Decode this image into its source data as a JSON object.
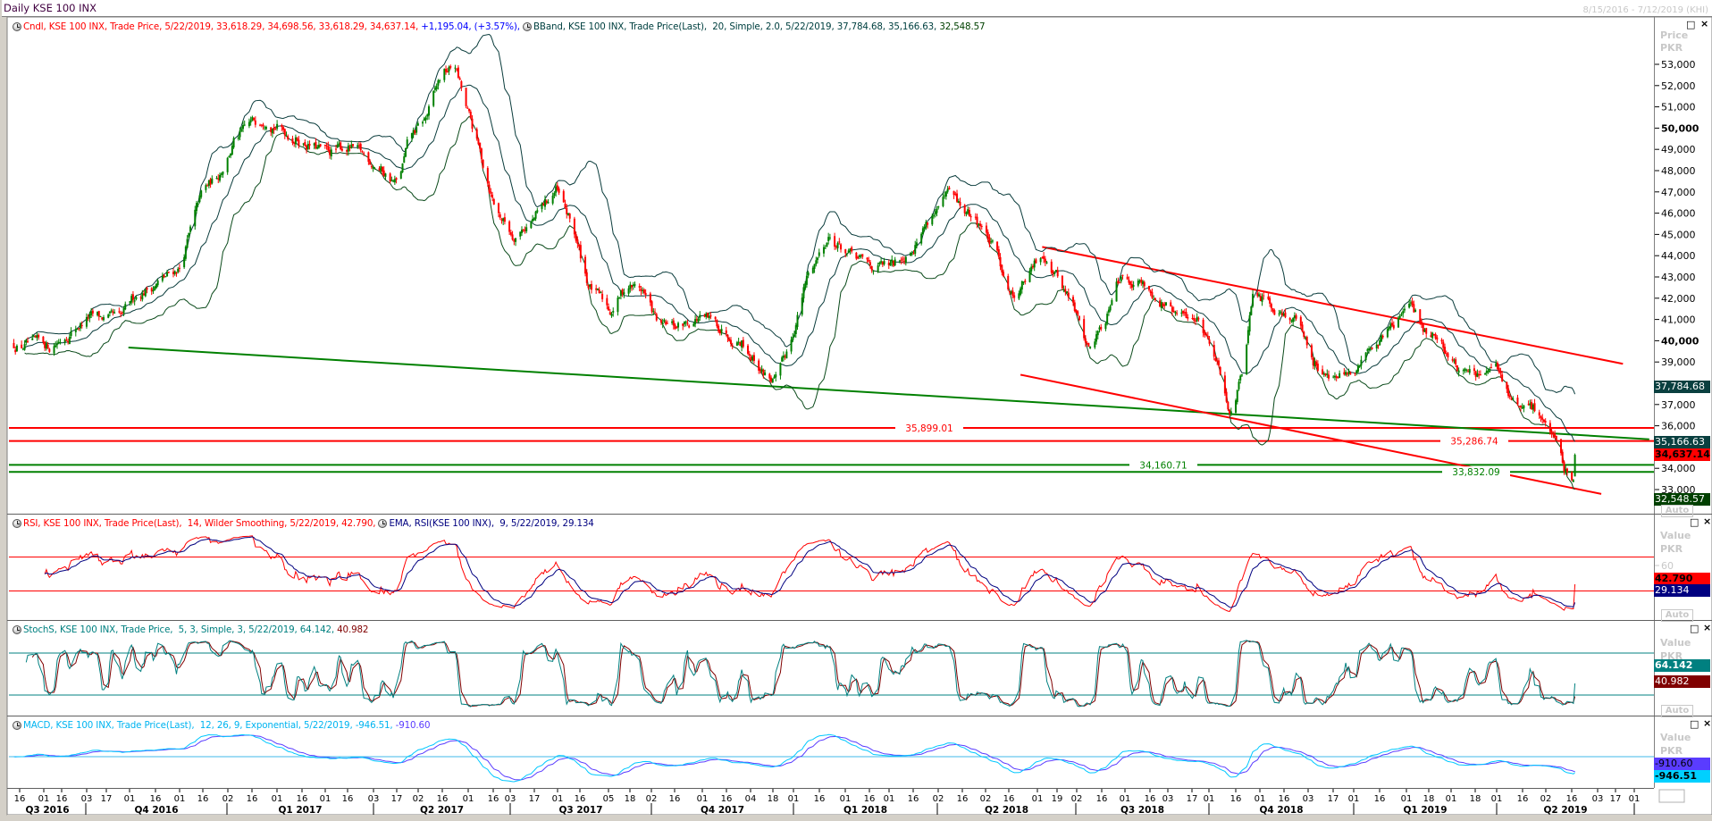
{
  "window": {
    "title": "Daily KSE 100 INX",
    "date_range": "8/15/2016 - 7/12/2019 (KHI)"
  },
  "main_panel": {
    "legend": {
      "cndl": "Cndl, KSE 100 INX, Trade Price, 5/22/2019, 33,618.29, 34,698.56, 33,618.29, 34,637.14, ",
      "change": "+1,195.04, (+3.57%), ",
      "bband": "BBand, KSE 100 INX, Trade Price(Last),  20, Simple, 2.0, 5/22/2019, 37,784.68, 35,166.63, ",
      "bband_last": "32,548.57"
    },
    "axis_title": "Price",
    "axis_unit": "PKR",
    "auto_label": "Auto",
    "value_boxes": {
      "bb_upper": "37,784.68",
      "bb_middle": "35,166.63",
      "last_price": "34,637.14",
      "bb_lower": "32,548.57"
    }
  },
  "rsi_panel": {
    "legend": {
      "rsi": "RSI, KSE 100 INX, Trade Price(Last),  14, Wilder Smoothing, 5/22/2019, 42.790, ",
      "ema": "EMA, RSI(KSE 100 INX),  9, 5/22/2019, 29.134"
    },
    "axis_title": "Value",
    "axis_unit": "PKR",
    "tick": "60",
    "auto_label": "Auto",
    "value_boxes": {
      "rsi": "42.790",
      "ema": "29.134"
    }
  },
  "stoch_panel": {
    "legend": {
      "stoch": "StochS, KSE 100 INX, Trade Price,  5, 3, Simple, 3, 5/22/2019, 64.142, ",
      "d": "40.982"
    },
    "axis_title": "Value",
    "axis_unit": "PKR",
    "auto_label": "Auto",
    "value_boxes": {
      "k": "64.142",
      "d": "40.982"
    }
  },
  "macd_panel": {
    "legend": {
      "macd": "MACD, KSE 100 INX, Trade Price(Last),  12, 26, 9, Exponential, 5/22/2019, -946.51, ",
      "signal": "-910.60"
    },
    "axis_title": "Value",
    "axis_unit": "PKR",
    "value_boxes": {
      "signal": "-910.60",
      "macd": "-946.51"
    }
  },
  "panel_buttons": {
    "maximize": "□",
    "close": "×"
  },
  "colors": {
    "up": "#008000",
    "down": "#ff0000",
    "bband": "#0a3c3c",
    "rsi": "#ff0000",
    "rsi_ema": "#000080",
    "stoch_k": "#008080",
    "stoch_d": "#800000",
    "macd": "#00c8ff",
    "macd_signal": "#5a3cff",
    "title": "#400040"
  },
  "chart_data": {
    "type": "candlestick",
    "symbol": "KSE 100 INX",
    "y_ticks": [
      "53,000",
      "52,000",
      "51,000",
      "50,000",
      "49,000",
      "48,000",
      "47,000",
      "46,000",
      "45,000",
      "44,000",
      "43,000",
      "42,000",
      "41,000",
      "40,000",
      "39,000",
      "37,000",
      "36,000",
      "34,000",
      "33,000"
    ],
    "y_tick_values": [
      53000,
      52000,
      51000,
      50000,
      49000,
      48000,
      47000,
      46000,
      45000,
      44000,
      43000,
      42000,
      41000,
      40000,
      39000,
      37000,
      36000,
      34000,
      33000
    ],
    "y_bold": [
      "50,000",
      "40,000"
    ],
    "x_ticks": [
      "16",
      "01",
      "16",
      "03",
      "17",
      "01",
      "16",
      "01",
      "16",
      "02",
      "16",
      "01",
      "16",
      "01",
      "16",
      "03",
      "17",
      "02",
      "16",
      "01",
      "16",
      "03",
      "17",
      "01",
      "16",
      "05",
      "18",
      "02",
      "16",
      "01",
      "16",
      "04",
      "18",
      "01",
      "16",
      "01",
      "16",
      "01",
      "16",
      "02",
      "16",
      "02",
      "16",
      "01",
      "19",
      "02",
      "16",
      "01",
      "16",
      "03",
      "17",
      "01",
      "16",
      "01",
      "16",
      "03",
      "17",
      "01",
      "16",
      "01",
      "18",
      "01",
      "18",
      "01",
      "16",
      "02",
      "16",
      "03",
      "17",
      "01"
    ],
    "quarters": [
      "Q3 2016",
      "Q4 2016",
      "Q1 2017",
      "Q2 2017",
      "Q3 2017",
      "Q4 2017",
      "Q1 2018",
      "Q2 2018",
      "Q3 2018",
      "Q4 2018",
      "Q1 2019",
      "Q2 2019"
    ],
    "close_trace": [
      [
        "2016-08-17",
        39840
      ],
      [
        "2016-09-09",
        39700
      ],
      [
        "2016-10-04",
        41100
      ],
      [
        "2016-10-25",
        40900
      ],
      [
        "2016-11-04",
        42150
      ],
      [
        "2016-11-22",
        42900
      ],
      [
        "2016-12-02",
        43450
      ],
      [
        "2016-12-16",
        46800
      ],
      [
        "2016-12-27",
        47800
      ],
      [
        "2017-01-06",
        49350
      ],
      [
        "2017-01-17",
        50100
      ],
      [
        "2017-01-27",
        50650
      ],
      [
        "2017-02-07",
        49900
      ],
      [
        "2017-02-21",
        49350
      ],
      [
        "2017-03-07",
        48800
      ],
      [
        "2017-03-21",
        49100
      ],
      [
        "2017-04-08",
        48300
      ],
      [
        "2017-04-22",
        47300
      ],
      [
        "2017-04-29",
        49350
      ],
      [
        "2017-05-10",
        50400
      ],
      [
        "2017-05-20",
        52450
      ],
      [
        "2017-05-29",
        52950
      ],
      [
        "2017-06-05",
        50900
      ],
      [
        "2017-06-14",
        48800
      ],
      [
        "2017-06-24",
        46250
      ],
      [
        "2017-07-05",
        45000
      ],
      [
        "2017-07-19",
        45750
      ],
      [
        "2017-08-02",
        47050
      ],
      [
        "2017-08-13",
        45250
      ],
      [
        "2017-08-23",
        42650
      ],
      [
        "2017-09-06",
        41400
      ],
      [
        "2017-09-17",
        42650
      ],
      [
        "2017-09-27",
        42400
      ],
      [
        "2017-10-08",
        40600
      ],
      [
        "2017-10-19",
        40600
      ],
      [
        "2017-11-02",
        41100
      ],
      [
        "2017-11-16",
        40600
      ],
      [
        "2017-11-30",
        40100
      ],
      [
        "2017-12-14",
        38550
      ],
      [
        "2017-12-23",
        38050
      ],
      [
        "2018-01-01",
        40100
      ],
      [
        "2018-01-11",
        42900
      ],
      [
        "2018-01-25",
        45000
      ],
      [
        "2018-02-08",
        43950
      ],
      [
        "2018-02-22",
        43450
      ],
      [
        "2018-03-08",
        43450
      ],
      [
        "2018-03-22",
        44700
      ],
      [
        "2018-04-02",
        46000
      ],
      [
        "2018-04-13",
        46800
      ],
      [
        "2018-04-23",
        46000
      ],
      [
        "2018-05-03",
        45500
      ],
      [
        "2018-05-14",
        43950
      ],
      [
        "2018-05-24",
        42150
      ],
      [
        "2018-06-04",
        43200
      ],
      [
        "2018-06-13",
        44200
      ],
      [
        "2018-06-21",
        43200
      ],
      [
        "2018-07-02",
        41650
      ],
      [
        "2018-07-12",
        39600
      ],
      [
        "2018-07-23",
        41100
      ],
      [
        "2018-07-30",
        43200
      ],
      [
        "2018-08-13",
        42900
      ],
      [
        "2018-08-24",
        42150
      ],
      [
        "2018-09-07",
        41100
      ],
      [
        "2018-09-21",
        41100
      ],
      [
        "2018-10-01",
        39600
      ],
      [
        "2018-10-12",
        36750
      ],
      [
        "2018-10-19",
        38300
      ],
      [
        "2018-10-26",
        41900
      ],
      [
        "2018-11-09",
        41650
      ],
      [
        "2018-11-23",
        41100
      ],
      [
        "2018-12-04",
        39050
      ],
      [
        "2018-12-18",
        38300
      ],
      [
        "2019-01-01",
        38300
      ],
      [
        "2019-01-08",
        39600
      ],
      [
        "2019-01-22",
        40600
      ],
      [
        "2019-02-04",
        41650
      ],
      [
        "2019-02-13",
        40600
      ],
      [
        "2019-02-23",
        40100
      ],
      [
        "2019-03-09",
        38550
      ],
      [
        "2019-03-23",
        38300
      ],
      [
        "2019-04-03",
        38550
      ],
      [
        "2019-04-14",
        36750
      ],
      [
        "2019-04-28",
        36750
      ],
      [
        "2019-05-05",
        36000
      ],
      [
        "2019-05-12",
        34400
      ],
      [
        "2019-05-19",
        33400
      ]
    ],
    "last_bar": {
      "date": "2019-05-22",
      "open": 33618.29,
      "high": 34698.56,
      "low": 33618.29,
      "close": 34637.14,
      "change": 1195.04,
      "change_pct": 3.57
    },
    "bollinger": {
      "period": 20,
      "type": "Simple",
      "stddev": 2.0,
      "upper": 37784.68,
      "middle": 35166.63,
      "lower": 32548.57
    },
    "horizontal_lines": [
      {
        "value": 35899.01,
        "label": "35,899.01",
        "color": "#ff0000"
      },
      {
        "value": 35286.74,
        "label": "35,286.74",
        "color": "#ff0000"
      },
      {
        "value": 34160.71,
        "label": "34,160.71",
        "color": "#008000"
      },
      {
        "value": 33832.09,
        "label": "33,832.09",
        "color": "#008000"
      }
    ],
    "trend_lines": [
      {
        "name": "support-trendline",
        "color": "#008000",
        "from": [
          "2016-10-30",
          39680
        ],
        "to": [
          "2019-07-09",
          35365
        ]
      },
      {
        "name": "channel-upper",
        "color": "#ff0000",
        "from": [
          "2018-06-12",
          44414
        ],
        "to": [
          "2019-06-22",
          38913
        ]
      },
      {
        "name": "channel-lower",
        "color": "#ff0000",
        "from": [
          "2018-05-29",
          38400
        ],
        "to": [
          "2019-06-08",
          32794
        ]
      }
    ],
    "rsi": {
      "period": 14,
      "smoothing": "Wilder Smoothing",
      "value": 42.79,
      "ema_period": 9,
      "ema_value": 29.134,
      "levels": [
        70,
        30
      ]
    },
    "stoch": {
      "k": 5,
      "smooth": 3,
      "d": 3,
      "type": "Simple",
      "k_value": 64.142,
      "d_value": 40.982,
      "levels": [
        80,
        20
      ]
    },
    "macd": {
      "fast": 12,
      "slow": 26,
      "signal": 9,
      "type": "Exponential",
      "macd_value": -946.51,
      "signal_value": -910.6
    }
  }
}
